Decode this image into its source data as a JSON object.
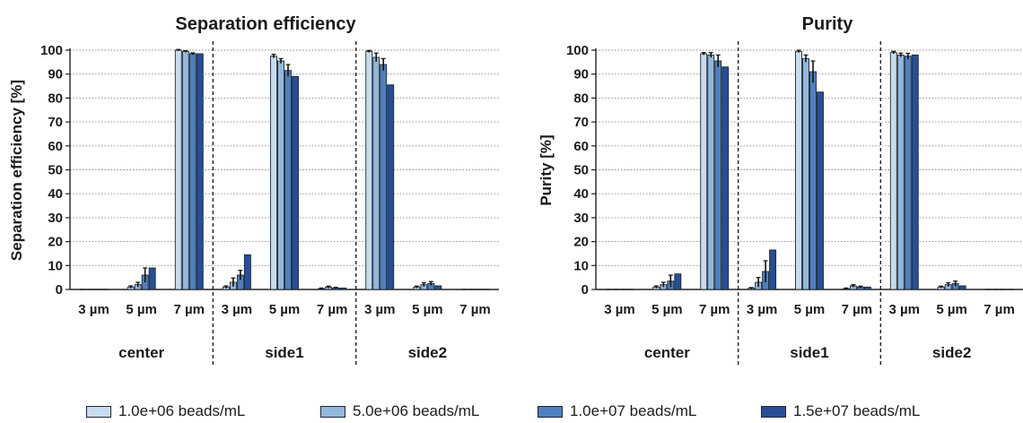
{
  "chart_data": [
    {
      "type": "bar",
      "title": "Separation efficiency",
      "ylabel": "Separation efficiency [%]",
      "ylim": [
        0,
        100
      ],
      "yticks": [
        0,
        10,
        20,
        30,
        40,
        50,
        60,
        70,
        80,
        90,
        100
      ],
      "grid": "horizontal dotted",
      "groups": [
        {
          "name": "center",
          "categories": [
            "3 µm",
            "5 µm",
            "7 µm"
          ]
        },
        {
          "name": "side1",
          "categories": [
            "3 µm",
            "5 µm",
            "7 µm"
          ]
        },
        {
          "name": "side2",
          "categories": [
            "3 µm",
            "5 µm",
            "7 µm"
          ]
        }
      ],
      "series": [
        {
          "name": "1.0e+06 beads/mL",
          "values": [
            0,
            1,
            100,
            1,
            97.5,
            0.3,
            99.5,
            1,
            0
          ],
          "errors": [
            0,
            0.5,
            0.3,
            0.5,
            0.8,
            0.3,
            0.4,
            0.4,
            0
          ]
        },
        {
          "name": "5.0e+06 beads/mL",
          "values": [
            0,
            2,
            99.5,
            3,
            95.5,
            1,
            97,
            2,
            0
          ],
          "errors": [
            0,
            1.0,
            0.3,
            1.8,
            1.0,
            0.4,
            1.8,
            0.8,
            0
          ]
        },
        {
          "name": "1.0e+07 beads/mL",
          "values": [
            0,
            6,
            98.5,
            6,
            91.5,
            0.6,
            94,
            2.5,
            0
          ],
          "errors": [
            0,
            3.0,
            0.4,
            2.0,
            2.5,
            0.3,
            2.5,
            0.8,
            0
          ]
        },
        {
          "name": "1.5e+07 beads/mL",
          "values": [
            0,
            9,
            98.5,
            14.5,
            89,
            0.6,
            85.5,
            1.5,
            0
          ],
          "errors": [
            0,
            0,
            0,
            0,
            0,
            0,
            0,
            0,
            0
          ]
        }
      ]
    },
    {
      "type": "bar",
      "title": "Purity",
      "ylabel": "Purity [%]",
      "ylim": [
        0,
        100
      ],
      "yticks": [
        0,
        10,
        20,
        30,
        40,
        50,
        60,
        70,
        80,
        90,
        100
      ],
      "grid": "horizontal dotted",
      "groups": [
        {
          "name": "center",
          "categories": [
            "3 µm",
            "5 µm",
            "7 µm"
          ]
        },
        {
          "name": "side1",
          "categories": [
            "3 µm",
            "5 µm",
            "7 µm"
          ]
        },
        {
          "name": "side2",
          "categories": [
            "3 µm",
            "5 µm",
            "7 µm"
          ]
        }
      ],
      "series": [
        {
          "name": "1.0e+06 beads/mL",
          "values": [
            0,
            1,
            98.5,
            0.5,
            99.5,
            0.3,
            99,
            1,
            0
          ],
          "errors": [
            0,
            0.5,
            0.5,
            0.3,
            0.5,
            0.3,
            0.5,
            0.4,
            0
          ]
        },
        {
          "name": "5.0e+06 beads/mL",
          "values": [
            0,
            2,
            98,
            3,
            96.5,
            1.5,
            98,
            2,
            0
          ],
          "errors": [
            0,
            1.0,
            1.0,
            2.0,
            1.5,
            0.5,
            0.8,
            0.8,
            0
          ]
        },
        {
          "name": "1.0e+07 beads/mL",
          "values": [
            0,
            3.5,
            95.5,
            7.5,
            91,
            1,
            97.5,
            2.5,
            0
          ],
          "errors": [
            0,
            2.5,
            2.5,
            4.5,
            4.5,
            0.4,
            1.2,
            1.0,
            0
          ]
        },
        {
          "name": "1.5e+07 beads/mL",
          "values": [
            0,
            6.5,
            93,
            16.5,
            82.5,
            1,
            98,
            1.5,
            0
          ],
          "errors": [
            0,
            0,
            0,
            0,
            0,
            0,
            0,
            0,
            0
          ]
        }
      ]
    }
  ],
  "legend": [
    {
      "label": "1.0e+06 beads/mL",
      "color": "#c8dcef"
    },
    {
      "label": "5.0e+06 beads/mL",
      "color": "#93b7dc"
    },
    {
      "label": "1.0e+07 beads/mL",
      "color": "#4f80be"
    },
    {
      "label": "1.5e+07 beads/mL",
      "color": "#264f96"
    }
  ]
}
